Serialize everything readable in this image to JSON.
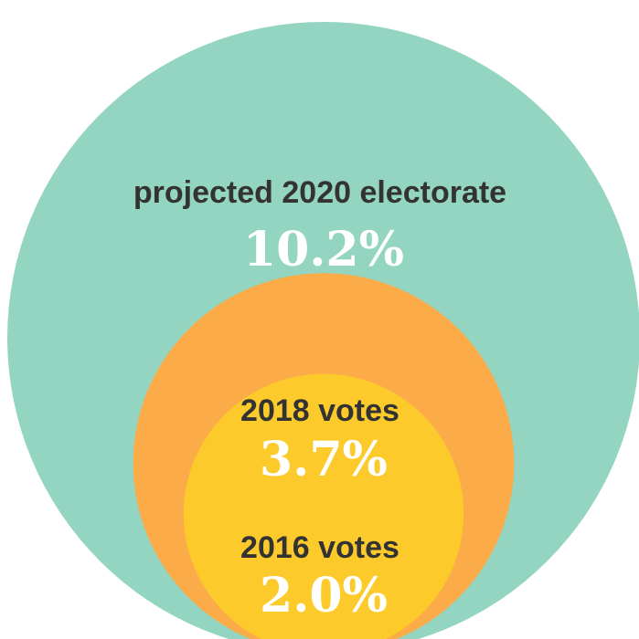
{
  "chart_data": {
    "type": "nested-circles",
    "title": "",
    "series": [
      {
        "name": "projected 2020 electorate",
        "value": 10.2,
        "value_label": "10.2%",
        "color": "#94d5c2"
      },
      {
        "name": "2018 votes",
        "value": 3.7,
        "value_label": "3.7%",
        "color": "#fbab47"
      },
      {
        "name": "2016 votes",
        "value": 2.0,
        "value_label": "2.0%",
        "color": "#fccb2b"
      }
    ]
  }
}
